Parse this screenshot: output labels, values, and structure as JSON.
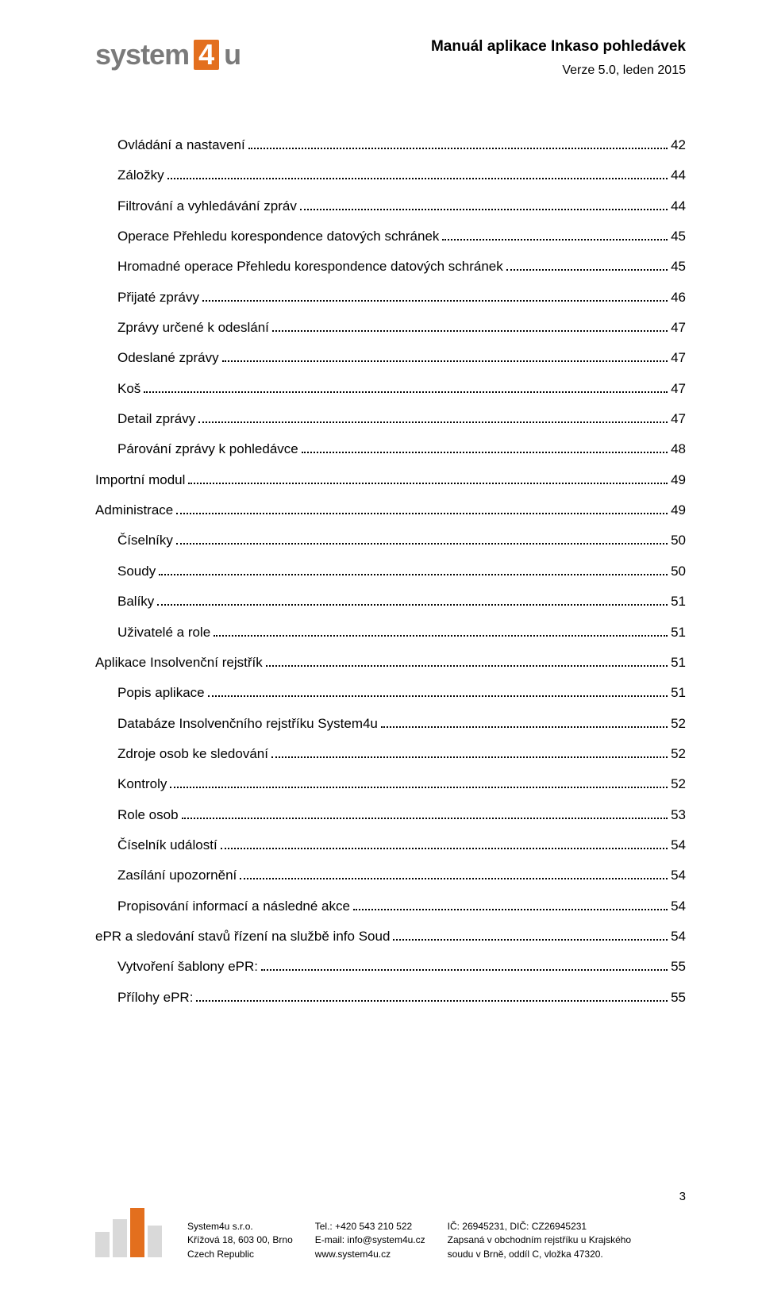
{
  "header": {
    "logo_text_left": "system",
    "logo_number": "4",
    "logo_text_right": "u",
    "doc_title": "Manuál aplikace Inkaso pohledávek",
    "doc_version": "Verze 5.0, leden 2015"
  },
  "toc": [
    {
      "label": "Ovládání a nastavení",
      "page": "42",
      "indent": 1
    },
    {
      "label": "Záložky",
      "page": "44",
      "indent": 1
    },
    {
      "label": "Filtrování a vyhledávání zpráv",
      "page": "44",
      "indent": 1
    },
    {
      "label": "Operace Přehledu korespondence datových schránek",
      "page": "45",
      "indent": 1
    },
    {
      "label": "Hromadné operace Přehledu korespondence datových schránek",
      "page": "45",
      "indent": 1
    },
    {
      "label": "Přijaté zprávy",
      "page": "46",
      "indent": 1
    },
    {
      "label": "Zprávy určené k odeslání",
      "page": "47",
      "indent": 1
    },
    {
      "label": "Odeslané zprávy",
      "page": "47",
      "indent": 1
    },
    {
      "label": "Koš",
      "page": "47",
      "indent": 1
    },
    {
      "label": "Detail zprávy",
      "page": "47",
      "indent": 1
    },
    {
      "label": "Párování zprávy k pohledávce",
      "page": "48",
      "indent": 1
    },
    {
      "label": "Importní modul",
      "page": "49",
      "indent": 0
    },
    {
      "label": "Administrace",
      "page": "49",
      "indent": 0
    },
    {
      "label": "Číselníky",
      "page": "50",
      "indent": 1
    },
    {
      "label": "Soudy",
      "page": "50",
      "indent": 1
    },
    {
      "label": "Balíky",
      "page": "51",
      "indent": 1
    },
    {
      "label": "Uživatelé a role",
      "page": "51",
      "indent": 1
    },
    {
      "label": "Aplikace Insolvenční rejstřík",
      "page": "51",
      "indent": 0
    },
    {
      "label": "Popis aplikace",
      "page": "51",
      "indent": 1
    },
    {
      "label": "Databáze Insolvenčního rejstříku System4u",
      "page": "52",
      "indent": 1
    },
    {
      "label": "Zdroje osob ke sledování",
      "page": "52",
      "indent": 1
    },
    {
      "label": "Kontroly",
      "page": "52",
      "indent": 1
    },
    {
      "label": "Role osob",
      "page": "53",
      "indent": 1
    },
    {
      "label": "Číselník událostí",
      "page": "54",
      "indent": 1
    },
    {
      "label": "Zasílání upozornění",
      "page": "54",
      "indent": 1
    },
    {
      "label": "Propisování informací a následné akce",
      "page": "54",
      "indent": 1
    },
    {
      "label": "ePR a sledování stavů řízení na službě info Soud",
      "page": "54",
      "indent": 0
    },
    {
      "label": "Vytvoření šablony ePR:",
      "page": "55",
      "indent": 1
    },
    {
      "label": "Přílohy ePR:",
      "page": "55",
      "indent": 1
    }
  ],
  "footer": {
    "page_number": "3",
    "col1": {
      "l1": "System4u s.r.o.",
      "l2": "Křížová 18, 603 00, Brno",
      "l3": "Czech Republic"
    },
    "col2": {
      "l1": "Tel.: +420 543 210 522",
      "l2": "E-mail: info@system4u.cz",
      "l3": "www.system4u.cz"
    },
    "col3": {
      "l1": "IČ: 26945231, DIČ: CZ26945231",
      "l2": "Zapsaná v obchodním rejstříku u Krajského",
      "l3": "soudu v Brně, oddíl C, vložka 47320."
    },
    "logo": {
      "fill": "#d9d9d9",
      "number_fill": "#e36f1e"
    }
  }
}
